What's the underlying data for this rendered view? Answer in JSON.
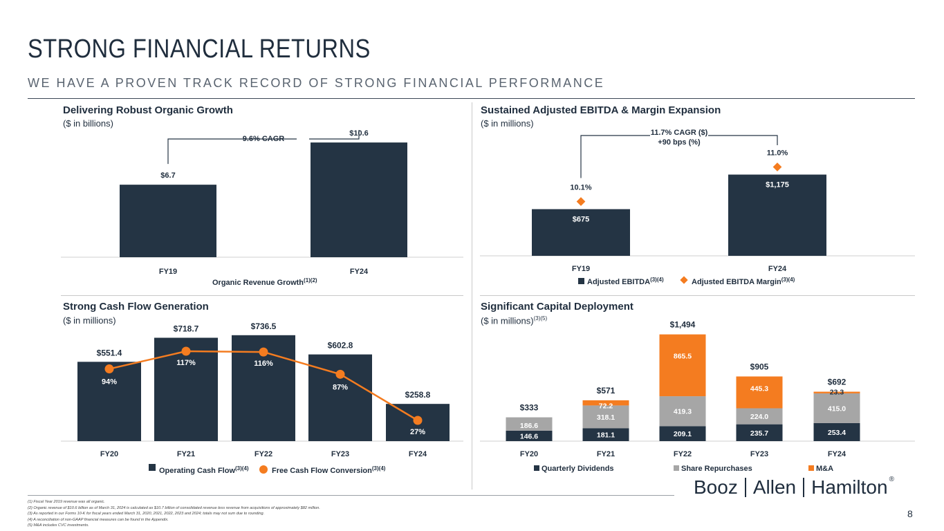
{
  "header": {
    "title": "STRONG FINANCIAL RETURNS",
    "subtitle": "WE HAVE A PROVEN TRACK RECORD OF STRONG FINANCIAL PERFORMANCE"
  },
  "colors": {
    "navy": "#243444",
    "orange": "#f47c20",
    "gray": "#a6a6a6"
  },
  "chart_data": [
    {
      "type": "bar",
      "title": "Delivering Robust Organic Growth",
      "subtitle": "($ in billions)",
      "categories": [
        "FY19",
        "FY24"
      ],
      "values": [
        6.7,
        10.6
      ],
      "value_labels": [
        "$6.7",
        "$10.6"
      ],
      "annotation": "9.6% CAGR",
      "legend_label": "Organic Revenue Growth",
      "legend_sup": "(1)(2)",
      "ylim": [
        0,
        11.5
      ]
    },
    {
      "type": "bar",
      "title": "Sustained Adjusted EBITDA & Margin Expansion",
      "subtitle": "($ in millions)",
      "categories": [
        "FY19",
        "FY24"
      ],
      "series": [
        {
          "name": "Adjusted EBITDA",
          "name_sup": "(3)(4)",
          "values": [
            675,
            1175
          ],
          "labels": [
            "$675",
            "$1,175"
          ]
        },
        {
          "name": "Adjusted EBITDA Margin",
          "name_sup": "(3)(4)",
          "values": [
            10.1,
            11.0
          ],
          "labels": [
            "10.1%",
            "11.0%"
          ]
        }
      ],
      "annotation_line1": "11.7% CAGR ($)",
      "annotation_line2": "+90 bps (%)",
      "ylim": [
        0,
        1300
      ]
    },
    {
      "type": "bar",
      "title": "Strong Cash Flow Generation",
      "subtitle": "($ in millions)",
      "categories": [
        "FY20",
        "FY21",
        "FY22",
        "FY23",
        "FY24"
      ],
      "series": [
        {
          "name": "Operating Cash Flow",
          "name_sup": "(3)(4)",
          "values": [
            551.4,
            718.7,
            736.5,
            602.8,
            258.8
          ],
          "labels": [
            "$551.4",
            "$718.7",
            "$736.5",
            "$602.8",
            "$258.8"
          ]
        },
        {
          "name": "Free Cash Flow Conversion",
          "name_sup": "(3)(4)",
          "values": [
            94,
            117,
            116,
            87,
            27
          ],
          "labels": [
            "94%",
            "117%",
            "116%",
            "87%",
            "27%"
          ]
        }
      ],
      "ylim": [
        0,
        750
      ]
    },
    {
      "type": "bar",
      "title": "Significant Capital Deployment",
      "subtitle": "($ in millions)",
      "subtitle_sup": "(3)(5)",
      "categories": [
        "FY20",
        "FY21",
        "FY22",
        "FY23",
        "FY24"
      ],
      "series": [
        {
          "name": "Quarterly Dividends",
          "values": [
            146.6,
            181.1,
            209.1,
            235.7,
            253.4
          ],
          "labels": [
            "146.6",
            "181.1",
            "209.1",
            "235.7",
            "253.4"
          ]
        },
        {
          "name": "Share Repurchases",
          "values": [
            186.6,
            318.1,
            419.3,
            224.0,
            415.0
          ],
          "labels": [
            "186.6",
            "318.1",
            "419.3",
            "224.0",
            "415.0"
          ]
        },
        {
          "name": "M&A",
          "values": [
            0,
            72.2,
            865.5,
            445.3,
            23.3
          ],
          "labels": [
            "",
            "72.2",
            "865.5",
            "445.3",
            "23.3"
          ]
        }
      ],
      "totals": [
        "$333",
        "$571",
        "$1,494",
        "$905",
        "$692"
      ],
      "ylim": [
        0,
        1500
      ]
    }
  ],
  "footnotes": [
    "(1) Fiscal Year 2019 revenue was all organic.",
    "(2) Organic revenue of $10.6 billion as of March 31, 2024 is calculated as $10.7 billion of consolidated revenue less revenue from acquisitions of approximately $82 million.",
    "(3) As reported in our Forms 10-K for fiscal years ended March 31, 2020, 2021, 2022, 2023 and 2024; totals may not sum due to rounding.",
    "(4) A reconciliation of non-GAAP financial measures can be found in the Appendix.",
    "(5) M&A includes CVC investments."
  ],
  "logo": {
    "part1": "Booz",
    "part2": "Allen",
    "part3": "Hamilton",
    "mark": "®"
  },
  "page_number": "8"
}
